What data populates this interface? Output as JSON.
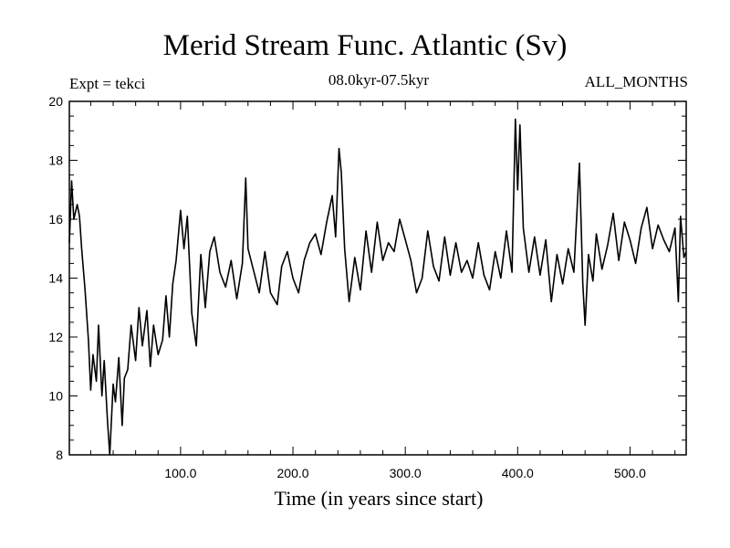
{
  "chart_data": {
    "type": "line",
    "title": "Merid Stream Func. Atlantic (Sv)",
    "subtitle": "08.0kyr-07.5kyr",
    "left_label": "Expt = tekci",
    "right_label": "ALL_MONTHS",
    "xlabel": "Time (in years since start)",
    "ylabel": "",
    "xlim": [
      1,
      550
    ],
    "ylim": [
      8,
      20
    ],
    "xticks": [
      100,
      200,
      300,
      400,
      500
    ],
    "xtick_labels": [
      "100.0",
      "200.0",
      "300.0",
      "400.0",
      "500.0"
    ],
    "yticks": [
      8,
      10,
      12,
      14,
      16,
      18,
      20
    ],
    "ytick_labels": [
      "8",
      "10",
      "12",
      "14",
      "16",
      "18",
      "20"
    ],
    "grid": false,
    "series": [
      {
        "name": "Merid Stream Func. Atlantic",
        "x": [
          1,
          3,
          5,
          8,
          10,
          12,
          15,
          18,
          20,
          22,
          25,
          27,
          30,
          32,
          35,
          37,
          40,
          42,
          45,
          48,
          50,
          53,
          56,
          60,
          63,
          66,
          70,
          73,
          76,
          80,
          84,
          87,
          90,
          93,
          96,
          100,
          103,
          106,
          110,
          114,
          118,
          122,
          126,
          130,
          135,
          140,
          145,
          150,
          155,
          158,
          160,
          164,
          170,
          175,
          180,
          186,
          190,
          195,
          200,
          205,
          210,
          215,
          220,
          225,
          230,
          235,
          238,
          241,
          243,
          246,
          250,
          255,
          260,
          265,
          270,
          275,
          280,
          285,
          290,
          295,
          300,
          305,
          310,
          315,
          320,
          325,
          330,
          335,
          340,
          345,
          350,
          355,
          360,
          365,
          370,
          375,
          380,
          385,
          390,
          395,
          398,
          400,
          402,
          405,
          410,
          415,
          420,
          425,
          430,
          435,
          440,
          445,
          450,
          455,
          458,
          460,
          463,
          467,
          470,
          475,
          480,
          485,
          490,
          495,
          500,
          505,
          510,
          515,
          520,
          525,
          530,
          535,
          540,
          543,
          545,
          548,
          550
        ],
        "values": [
          15.2,
          17.3,
          16.0,
          16.5,
          16.1,
          15.0,
          13.6,
          11.9,
          10.2,
          11.4,
          10.5,
          12.4,
          10.0,
          11.2,
          9.1,
          8.0,
          10.4,
          9.8,
          11.3,
          9.0,
          10.6,
          10.9,
          12.4,
          11.2,
          13.0,
          11.7,
          12.9,
          11.0,
          12.4,
          11.4,
          11.9,
          13.4,
          12.0,
          13.8,
          14.6,
          16.3,
          15.0,
          16.1,
          12.8,
          11.7,
          14.8,
          13.0,
          14.9,
          15.4,
          14.2,
          13.7,
          14.6,
          13.3,
          14.5,
          17.4,
          15.0,
          14.4,
          13.5,
          14.9,
          13.5,
          13.1,
          14.4,
          14.9,
          14.0,
          13.5,
          14.6,
          15.2,
          15.5,
          14.8,
          15.9,
          16.8,
          15.4,
          18.4,
          17.6,
          15.0,
          13.2,
          14.7,
          13.6,
          15.6,
          14.2,
          15.9,
          14.6,
          15.2,
          14.9,
          16.0,
          15.3,
          14.6,
          13.5,
          14.0,
          15.6,
          14.4,
          13.9,
          15.4,
          14.1,
          15.2,
          14.2,
          14.6,
          14.0,
          15.2,
          14.1,
          13.6,
          14.9,
          14.0,
          15.6,
          14.2,
          19.4,
          17.0,
          19.2,
          15.7,
          14.2,
          15.4,
          14.1,
          15.3,
          13.2,
          14.8,
          13.8,
          15.0,
          14.2,
          17.9,
          13.8,
          12.4,
          14.8,
          13.9,
          15.5,
          14.3,
          15.1,
          16.2,
          14.6,
          15.9,
          15.3,
          14.5,
          15.7,
          16.4,
          15.0,
          15.8,
          15.3,
          14.9,
          15.7,
          13.2,
          16.1,
          14.7,
          14.9
        ]
      }
    ]
  }
}
